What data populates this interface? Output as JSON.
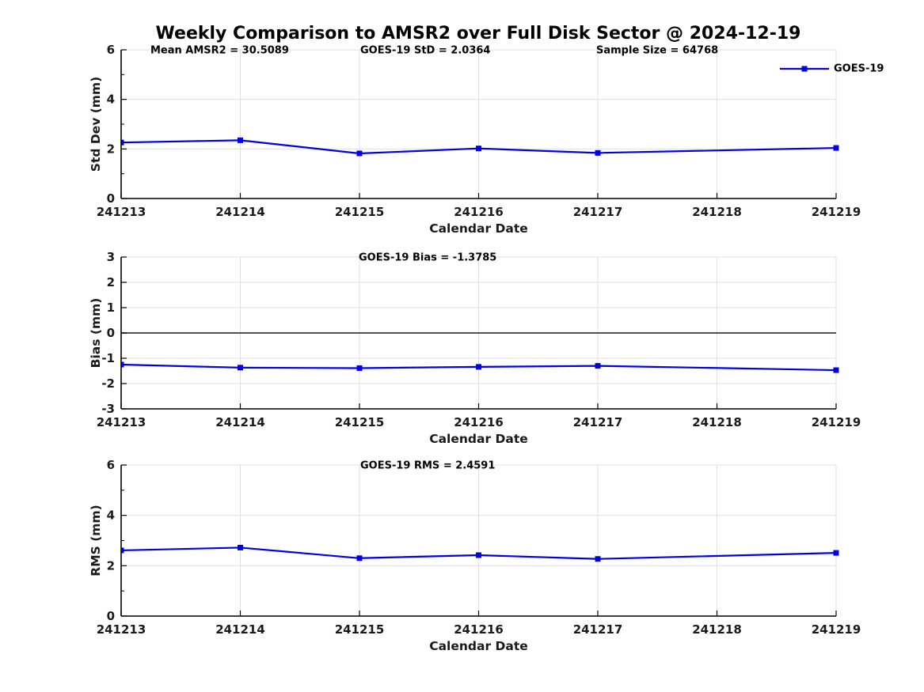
{
  "title": "Weekly Comparison to AMSR2 over Full Disk Sector @ 2024-12-19",
  "colors": {
    "series": "#0000E0",
    "grid": "#E0E0E0",
    "axis": "#000000",
    "zero_line": "#3A3A3A",
    "text": "#1A1A1A"
  },
  "chart_data": [
    {
      "type": "line",
      "ylabel": "Std Dev (mm)",
      "xlabel": "Calendar Date",
      "ylim": [
        0,
        6
      ],
      "yticks": [
        0,
        2,
        4,
        6
      ],
      "minor_yticks": [
        1,
        3,
        5
      ],
      "xticks": [
        "241213",
        "241214",
        "241215",
        "241216",
        "241217",
        "241218",
        "241219"
      ],
      "xlim": [
        241213,
        241219
      ],
      "grid": true,
      "zero_line": false,
      "annotations": [
        "Mean AMSR2 = 30.5089",
        "GOES-19 StD = 2.0364",
        "Sample Size = 64768"
      ],
      "legend": {
        "visible": true,
        "label": "GOES-19",
        "position": "top-right-outside"
      },
      "series": [
        {
          "name": "GOES-19",
          "marker": "square",
          "x": [
            241213,
            241214,
            241215,
            241216,
            241217,
            241219
          ],
          "values": [
            2.26,
            2.35,
            1.82,
            2.02,
            1.84,
            2.04
          ]
        }
      ]
    },
    {
      "type": "line",
      "ylabel": "Bias (mm)",
      "xlabel": "Calendar Date",
      "ylim": [
        -3,
        3
      ],
      "yticks": [
        -3,
        -2,
        -1,
        0,
        1,
        2,
        3
      ],
      "minor_yticks": [],
      "xticks": [
        "241213",
        "241214",
        "241215",
        "241216",
        "241217",
        "241218",
        "241219"
      ],
      "xlim": [
        241213,
        241219
      ],
      "grid": true,
      "zero_line": true,
      "annotations": [
        "GOES-19 Bias  = -1.3785"
      ],
      "legend": {
        "visible": false,
        "label": "",
        "position": ""
      },
      "series": [
        {
          "name": "GOES-19",
          "marker": "square",
          "x": [
            241213,
            241214,
            241215,
            241216,
            241217,
            241219
          ],
          "values": [
            -1.25,
            -1.37,
            -1.39,
            -1.34,
            -1.3,
            -1.47
          ]
        }
      ]
    },
    {
      "type": "line",
      "ylabel": "RMS (mm)",
      "xlabel": "Calendar Date",
      "ylim": [
        0,
        6
      ],
      "yticks": [
        0,
        2,
        4,
        6
      ],
      "minor_yticks": [
        1,
        3,
        5
      ],
      "xticks": [
        "241213",
        "241214",
        "241215",
        "241216",
        "241217",
        "241218",
        "241219"
      ],
      "xlim": [
        241213,
        241219
      ],
      "grid": true,
      "zero_line": false,
      "annotations": [
        "GOES-19 RMS = 2.4591"
      ],
      "legend": {
        "visible": false,
        "label": "",
        "position": ""
      },
      "series": [
        {
          "name": "GOES-19",
          "marker": "square",
          "x": [
            241213,
            241214,
            241215,
            241216,
            241217,
            241219
          ],
          "values": [
            2.61,
            2.72,
            2.3,
            2.42,
            2.27,
            2.51
          ]
        }
      ]
    }
  ]
}
